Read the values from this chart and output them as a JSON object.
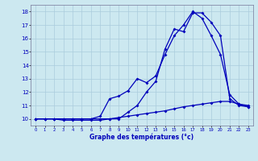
{
  "xlabel": "Graphe des températures (°c)",
  "background_color": "#cce8f0",
  "grid_color": "#aaccdd",
  "line_color": "#0000bb",
  "xlim": [
    -0.5,
    23.5
  ],
  "ylim": [
    9.5,
    18.5
  ],
  "xticks": [
    0,
    1,
    2,
    3,
    4,
    5,
    6,
    7,
    8,
    9,
    10,
    11,
    12,
    13,
    14,
    15,
    16,
    17,
    18,
    19,
    20,
    21,
    22,
    23
  ],
  "yticks": [
    10,
    11,
    12,
    13,
    14,
    15,
    16,
    17,
    18
  ],
  "series1_x": [
    0,
    1,
    2,
    3,
    4,
    5,
    6,
    7,
    8,
    9,
    10,
    11,
    12,
    13,
    14,
    15,
    16,
    17,
    18,
    19,
    20,
    21,
    22,
    23
  ],
  "series1_y": [
    10,
    10,
    10,
    9.9,
    9.9,
    9.9,
    9.9,
    9.9,
    10.0,
    10.1,
    10.2,
    10.3,
    10.4,
    10.5,
    10.6,
    10.75,
    10.9,
    11.0,
    11.1,
    11.2,
    11.3,
    11.3,
    11.1,
    10.9
  ],
  "series2_x": [
    0,
    1,
    2,
    3,
    4,
    5,
    6,
    7,
    8,
    9,
    10,
    11,
    12,
    13,
    14,
    15,
    16,
    17,
    18,
    19,
    20,
    21,
    22,
    23
  ],
  "series2_y": [
    10,
    10,
    10,
    10,
    10,
    10,
    10,
    10,
    10,
    10,
    10.5,
    11.0,
    12.0,
    12.8,
    15.2,
    16.7,
    16.5,
    17.9,
    17.9,
    17.2,
    16.2,
    11.5,
    11.0,
    10.9
  ],
  "series3_x": [
    0,
    1,
    2,
    3,
    4,
    5,
    6,
    7,
    8,
    9,
    10,
    11,
    12,
    13,
    14,
    15,
    16,
    17,
    18,
    19,
    20,
    21,
    22,
    23
  ],
  "series3_y": [
    10,
    10,
    10,
    10,
    10,
    10,
    10.0,
    10.2,
    11.5,
    11.7,
    12.1,
    13.0,
    12.7,
    13.2,
    14.8,
    16.2,
    17.0,
    18.0,
    17.5,
    16.2,
    14.8,
    11.8,
    11.1,
    11.0
  ]
}
